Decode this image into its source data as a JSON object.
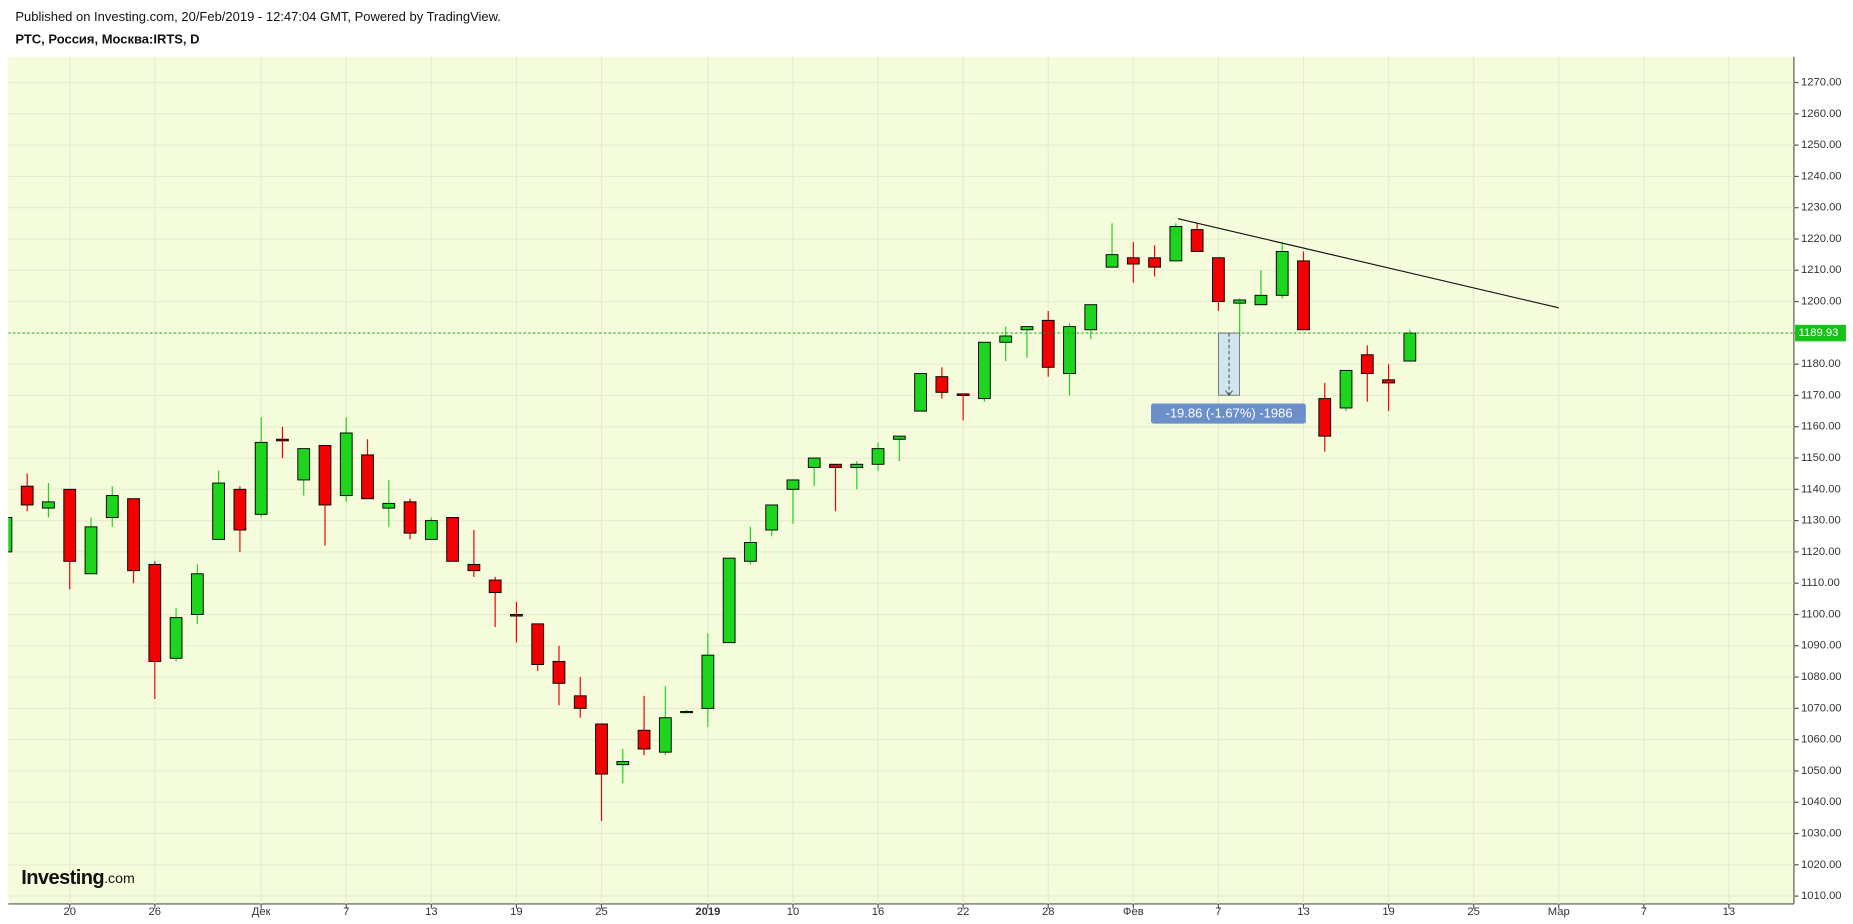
{
  "header": {
    "published": "Published on Investing.com, 20/Feb/2019 - 12:47:04 GMT, Powered by TradingView.",
    "symbol": "РТС, Россия, Москва:IRTS, D"
  },
  "logo": {
    "name": "Investing",
    "suffix": ".com"
  },
  "chart_data": {
    "type": "candlestick",
    "categories": [
      null,
      null,
      null,
      "20",
      null,
      null,
      null,
      "26",
      null,
      null,
      null,
      null,
      "Дек",
      null,
      null,
      null,
      "7",
      null,
      null,
      null,
      "13",
      null,
      null,
      null,
      "19",
      null,
      null,
      null,
      "25",
      null,
      null,
      null,
      null,
      "2019",
      null,
      null,
      null,
      "10",
      null,
      null,
      null,
      "16",
      null,
      null,
      null,
      "22",
      null,
      null,
      null,
      "28",
      null,
      null,
      null,
      "Фев",
      null,
      null,
      null,
      "7",
      null,
      null,
      null,
      "13",
      null,
      null,
      null,
      "19",
      null,
      null,
      null,
      "25",
      null,
      null,
      null,
      "Мар",
      null,
      null,
      null,
      "7",
      null,
      null,
      null,
      "13",
      null,
      null
    ],
    "open": [
      1120,
      1141,
      1134,
      1140,
      1113,
      1131,
      1137,
      1116,
      1086,
      1100,
      1124,
      1140,
      1132,
      1156,
      1143,
      1154,
      1138,
      1151,
      1134,
      1136,
      1124,
      1131,
      1116,
      1111,
      1100,
      1097,
      1085,
      1074,
      1065,
      1052,
      1063,
      1056,
      1069,
      1070,
      1091,
      1117,
      1127,
      1140,
      1147,
      1148,
      1147,
      1148,
      1156,
      1165,
      1176,
      1170.5,
      1169,
      1187,
      1191,
      1194,
      1177,
      1191,
      1211,
      1214,
      1214,
      1213,
      1223,
      1214,
      1199.5,
      1199,
      1202,
      1213,
      1169,
      1166,
      1183,
      1175,
      1181,
      null,
      null,
      null,
      null,
      null,
      null,
      null,
      null,
      null,
      null,
      null,
      null,
      null,
      null,
      null,
      null,
      null
    ],
    "high": [
      1133,
      1145,
      1142,
      1140,
      1131,
      1141,
      1137,
      1117,
      1102,
      1116,
      1146,
      1141,
      1163,
      1160,
      1153,
      1154,
      1163,
      1156,
      1143,
      1137,
      1131,
      1131,
      1127,
      1112,
      1104,
      1097,
      1090,
      1080,
      1065,
      1057,
      1074,
      1077,
      1069.5,
      1094,
      1118,
      1128,
      1135,
      1143,
      1150,
      1148,
      1149,
      1155,
      1157,
      1177,
      1179,
      1170.5,
      1187,
      1192,
      1192,
      1197,
      1193,
      1199,
      1225,
      1219,
      1218,
      1225,
      1225,
      1214,
      1201,
      1210,
      1219,
      1216,
      1174,
      1178,
      1186,
      1180,
      1191,
      null,
      null,
      null,
      null,
      null,
      null,
      null,
      null,
      null,
      null,
      null,
      null,
      null,
      null,
      null,
      null,
      null
    ],
    "low": [
      1118,
      1133,
      1131,
      1108,
      1113,
      1128,
      1110,
      1073,
      1085,
      1097,
      1124,
      1120,
      1131,
      1150,
      1138,
      1122,
      1136,
      1137,
      1128,
      1124,
      1124,
      1117,
      1112,
      1096,
      1091,
      1082,
      1071,
      1067,
      1034,
      1046,
      1055,
      1055,
      1068.5,
      1064,
      1091,
      1116,
      1125,
      1129,
      1141,
      1133,
      1140,
      1146,
      1149,
      1165,
      1169,
      1162,
      1168,
      1181,
      1182,
      1176,
      1170,
      1188,
      1211,
      1206,
      1208,
      1213,
      1216,
      1197,
      1189,
      1199,
      1201,
      1191,
      1152,
      1165,
      1168,
      1165,
      1181,
      null,
      null,
      null,
      null,
      null,
      null,
      null,
      null,
      null,
      null,
      null,
      null,
      null,
      null,
      null,
      null,
      null
    ],
    "close": [
      1131,
      1135,
      1136,
      1117,
      1128,
      1138,
      1114,
      1085,
      1099,
      1113,
      1142,
      1127,
      1155,
      1155.5,
      1153,
      1135,
      1158,
      1137,
      1135.5,
      1126,
      1130,
      1117,
      1114,
      1107,
      1099.5,
      1084,
      1078,
      1070,
      1049,
      1053,
      1057,
      1067,
      1069,
      1087,
      1118,
      1123,
      1135,
      1143,
      1150,
      1147,
      1148,
      1153,
      1157,
      1177,
      1171,
      1170,
      1187,
      1189,
      1192,
      1179,
      1192,
      1199,
      1215,
      1212,
      1211,
      1224,
      1216,
      1200,
      1200.5,
      1202,
      1216,
      1191,
      1157,
      1178,
      1177,
      1174,
      1189.93,
      null,
      null,
      null,
      null,
      null,
      null,
      null,
      null,
      null,
      null,
      null,
      null,
      null,
      null,
      null,
      null,
      null
    ],
    "up_color": "#1ed51e",
    "down_color": "#f40000",
    "ylim": [
      1007.5,
      1277.5
    ],
    "yticks": [
      {
        "value": 1010,
        "label": "1010.00"
      },
      {
        "value": 1020,
        "label": "1020.00"
      },
      {
        "value": 1030,
        "label": "1030.00"
      },
      {
        "value": 1040,
        "label": "1040.00"
      },
      {
        "value": 1050,
        "label": "1050.00"
      },
      {
        "value": 1060,
        "label": "1060.00"
      },
      {
        "value": 1070,
        "label": "1070.00"
      },
      {
        "value": 1080,
        "label": "1080.00"
      },
      {
        "value": 1090,
        "label": "1090.00"
      },
      {
        "value": 1100,
        "label": "1100.00"
      },
      {
        "value": 1110,
        "label": "1110.00"
      },
      {
        "value": 1120,
        "label": "1120.00"
      },
      {
        "value": 1130,
        "label": "1130.00"
      },
      {
        "value": 1140,
        "label": "1140.00"
      },
      {
        "value": 1150,
        "label": "1150.00"
      },
      {
        "value": 1160,
        "label": "1160.00"
      },
      {
        "value": 1170,
        "label": "1170.00"
      },
      {
        "value": 1180,
        "label": "1180.00"
      },
      {
        "value": 1190,
        "label": "1190.00"
      },
      {
        "value": 1200,
        "label": "1200.00"
      },
      {
        "value": 1210,
        "label": "1210.00"
      },
      {
        "value": 1220,
        "label": "1220.00"
      },
      {
        "value": 1230,
        "label": "1230.00"
      },
      {
        "value": 1240,
        "label": "1240.00"
      },
      {
        "value": 1250,
        "label": "1250.00"
      },
      {
        "value": 1260,
        "label": "1260.00"
      },
      {
        "value": 1270,
        "label": "1270.00"
      }
    ],
    "grid": true,
    "last_price": 1189.93,
    "trend_line": {
      "x": [
        55.1,
        73
      ],
      "y": [
        1226.5,
        1198
      ]
    },
    "measure": {
      "x": [
        57,
        58
      ],
      "from": 1189.93,
      "to": 1170.07,
      "label": "-19.86 (-1.67%) -1986"
    }
  }
}
